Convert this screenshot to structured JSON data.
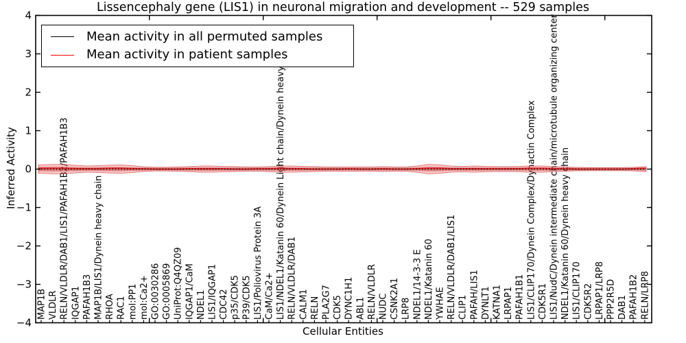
{
  "title": "Lissencephaly gene (LIS1) in neuronal migration and development -- 529 samples",
  "axes": {
    "xlabel": "Cellular Entities",
    "ylabel": "Inferred Activity"
  },
  "legend": {
    "items": [
      {
        "label": "Mean activity in all permuted samples",
        "color": "#000000"
      },
      {
        "label": "Mean activity in patient samples",
        "color": "#ff0000"
      }
    ]
  },
  "colors": {
    "patient_line": "#e32424",
    "permuted_line": "#000000",
    "patient_band_fill": "#eb5555",
    "patient_band_edge": "#cd2d2d",
    "permuted_band_fill": "#828282",
    "frame": "#000000",
    "background": "#ffffff"
  },
  "chart_data": {
    "type": "line",
    "title": "Lissencephaly gene (LIS1) in neuronal migration and development -- 529 samples",
    "xlabel": "Cellular Entities",
    "ylabel": "Inferred Activity",
    "ylim": [
      -4,
      4
    ],
    "yticks": [
      -4,
      -3,
      -2,
      -1,
      0,
      1,
      2,
      3,
      4
    ],
    "grid": false,
    "legend_position": "upper left",
    "categories": [
      "MAP1B",
      "VLDLR",
      "RELN/VLDLR/DAB1/LIS1/PAFAH1B2/PAFAH1B3",
      "IQGAP1",
      "PAFAH1B3",
      "MAP1B/LIS1/Dynein heavy chain",
      "RHOA",
      "RAC1",
      "mol:PP1",
      "mol:Ca2+",
      "GO:0030286",
      "GO:0005869",
      "UniProt:Q4QZ09",
      "IQGAP1/CaM",
      "NDEL1",
      "LIS1/IQGAP1",
      "CDC42",
      "p35/CDK5",
      "P39/CDK5",
      "LIS1/Poliovirus Protein 3A",
      "CaM/Ca2+",
      "LIS1/NDEL1/Katanin 60/Dynein Light chain/Dynein heavy chain",
      "RELN/VLDLR/DAB1",
      "CALM1",
      "RELN",
      "PLA2G7",
      "CDK5",
      "DYNC1H1",
      "ABL1",
      "RELN/VLDLR",
      "NUDC",
      "CSNK2A1",
      "LRP8",
      "NDEL1/14-3-3 E",
      "NDEL1/Katanin 60",
      "YWHAE",
      "RELN/VLDLR/DAB1/LIS1",
      "CLIP1",
      "PAFAH/LIS1",
      "DYNLT1",
      "KATNA1",
      "LRPAP1",
      "PAFAH1B1",
      "LIS1/CLIP170/Dynein Complex/Dynactin Complex",
      "CDK5R1",
      "LIS1/NudC/Dynein intermediate chain/microtubule organizing center",
      "NDEL1/Katanin 60/Dynein heavy chain",
      "LIS1/CLIP170",
      "CDK5R2",
      "LRPAP1/LRP8",
      "PPP2R5D",
      "DAB1",
      "PAFAH1B2",
      "RELN/LRP8"
    ],
    "series": [
      {
        "name": "Mean activity in all permuted samples",
        "color": "#000000",
        "line_style": "dotted",
        "values": [
          0,
          0,
          0,
          0,
          0,
          0,
          0,
          0,
          0,
          0,
          0,
          0,
          0,
          0,
          0,
          0,
          0,
          0,
          0,
          0,
          0,
          0,
          0,
          0,
          0,
          0,
          0,
          0,
          0,
          0,
          0,
          0,
          0,
          0,
          0,
          0,
          0,
          0,
          0,
          0,
          0,
          0,
          0,
          0,
          0,
          0,
          0,
          0,
          0,
          0,
          0,
          0,
          0,
          0
        ]
      },
      {
        "name": "Mean activity in patient samples",
        "color": "#e32424",
        "line_style": "solid",
        "values": [
          0.02,
          0.02,
          0.02,
          0.01,
          0.01,
          0.01,
          0.02,
          0.02,
          0.01,
          0.01,
          0,
          0,
          0,
          0.01,
          0.01,
          0.01,
          0.01,
          0,
          0,
          0.01,
          0.01,
          0.02,
          0.01,
          0.01,
          0,
          0,
          0,
          0.01,
          0,
          0,
          0.01,
          0,
          0,
          0.01,
          0.02,
          0.02,
          0.01,
          0.01,
          0.01,
          0.01,
          0.01,
          0.01,
          0.01,
          0.02,
          0.02,
          0.01,
          0.01,
          0,
          0,
          0,
          0,
          0,
          0.01,
          0.02
        ]
      }
    ],
    "bands": [
      {
        "name": "patient sample spread",
        "color": "#eb5555",
        "halfwidths": [
          0.11,
          0.12,
          0.12,
          0.1,
          0.08,
          0.09,
          0.1,
          0.11,
          0.09,
          0.06,
          0.05,
          0.05,
          0.055,
          0.065,
          0.08,
          0.08,
          0.07,
          0.065,
          0.055,
          0.055,
          0.065,
          0.08,
          0.08,
          0.07,
          0.065,
          0.055,
          0.055,
          0.055,
          0.055,
          0.055,
          0.065,
          0.055,
          0.055,
          0.08,
          0.12,
          0.11,
          0.08,
          0.07,
          0.08,
          0.07,
          0.065,
          0.065,
          0.07,
          0.08,
          0.08,
          0.065,
          0.055,
          0.045,
          0.04,
          0.04,
          0.04,
          0.04,
          0.045,
          0.065
        ]
      },
      {
        "name": "permuted sample spread",
        "color": "#828282",
        "halfwidth": 0.045
      }
    ]
  }
}
